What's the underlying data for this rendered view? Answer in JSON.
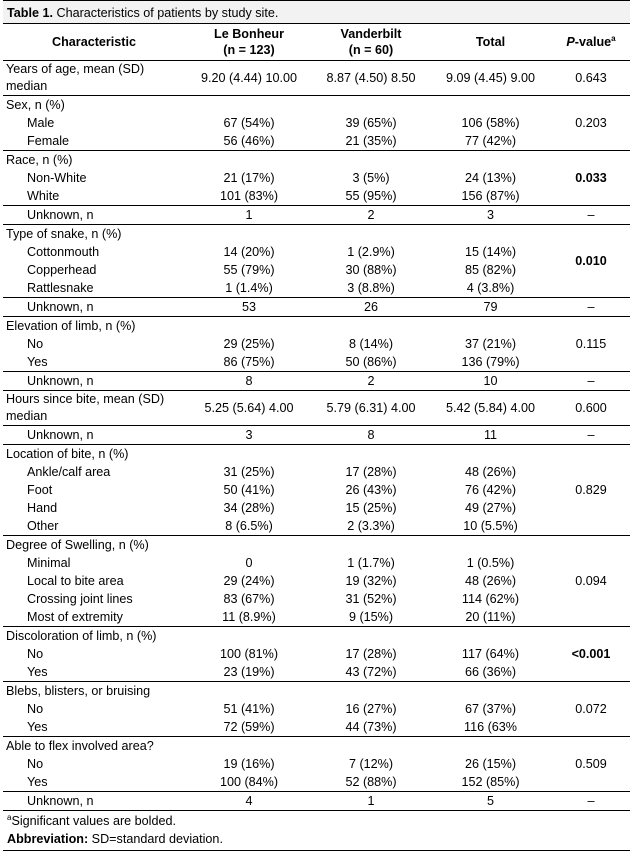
{
  "caption": {
    "label": "Table 1.",
    "text": "Characteristics of patients by study site."
  },
  "header": {
    "characteristic": "Characteristic",
    "site1_name": "Le Bonheur",
    "site1_n": "(n = 123)",
    "site2_name": "Vanderbilt",
    "site2_n": "(n = 60)",
    "total": "Total",
    "pvalue_italic": "P",
    "pvalue_rest": "-value",
    "pvalue_sup": "a"
  },
  "groups": [
    {
      "title": "Years of age, mean (SD) median",
      "values": [
        "9.20 (4.44) 10.00",
        "8.87 (4.50) 8.50",
        "9.09 (4.45) 9.00"
      ],
      "p": "0.643",
      "p_bold": false,
      "rows": []
    },
    {
      "title": "Sex, n (%)",
      "p": "0.203",
      "p_bold": false,
      "rows": [
        {
          "label": "Male",
          "values": [
            "67 (54%)",
            "39 (65%)",
            "106 (58%)"
          ]
        },
        {
          "label": "Female",
          "values": [
            "56 (46%)",
            "21 (35%)",
            "77 (42%)"
          ]
        }
      ],
      "unknown": null
    },
    {
      "title": "Race, n (%)",
      "p": "0.033",
      "p_bold": true,
      "rows": [
        {
          "label": "Non-White",
          "values": [
            "21 (17%)",
            "3 (5%)",
            "24 (13%)"
          ]
        },
        {
          "label": "White",
          "values": [
            "101 (83%)",
            "55 (95%)",
            "156 (87%)"
          ]
        }
      ],
      "unknown": {
        "label": "Unknown, n",
        "values": [
          "1",
          "2",
          "3"
        ],
        "p": "–"
      }
    },
    {
      "title": "Type of snake, n (%)",
      "p": "0.010",
      "p_bold": true,
      "rows": [
        {
          "label": "Cottonmouth",
          "values": [
            "14 (20%)",
            "1 (2.9%)",
            "15 (14%)"
          ]
        },
        {
          "label": "Copperhead",
          "values": [
            "55 (79%)",
            "30 (88%)",
            "85 (82%)"
          ]
        },
        {
          "label": "Rattlesnake",
          "values": [
            "1 (1.4%)",
            "3 (8.8%)",
            "4 (3.8%)"
          ]
        }
      ],
      "unknown": {
        "label": "Unknown, n",
        "values": [
          "53",
          "26",
          "79"
        ],
        "p": "–"
      }
    },
    {
      "title": "Elevation of limb, n (%)",
      "p": "0.115",
      "p_bold": false,
      "rows": [
        {
          "label": "No",
          "values": [
            "29 (25%)",
            "8 (14%)",
            "37 (21%)"
          ]
        },
        {
          "label": "Yes",
          "values": [
            "86 (75%)",
            "50 (86%)",
            "136 (79%)"
          ]
        }
      ],
      "unknown": {
        "label": "Unknown, n",
        "values": [
          "8",
          "2",
          "10"
        ],
        "p": "–"
      }
    },
    {
      "title": "Hours since bite, mean (SD) median",
      "values": [
        "5.25 (5.64) 4.00",
        "5.79 (6.31) 4.00",
        "5.42 (5.84) 4.00"
      ],
      "p": "0.600",
      "p_bold": false,
      "rows": [],
      "unknown": {
        "label": "Unknown, n",
        "values": [
          "3",
          "8",
          "11"
        ],
        "p": "–"
      }
    },
    {
      "title": "Location of bite, n (%)",
      "p": "0.829",
      "p_bold": false,
      "rows": [
        {
          "label": "Ankle/calf area",
          "values": [
            "31 (25%)",
            "17 (28%)",
            "48 (26%)"
          ]
        },
        {
          "label": "Foot",
          "values": [
            "50 (41%)",
            "26 (43%)",
            "76 (42%)"
          ]
        },
        {
          "label": "Hand",
          "values": [
            "34 (28%)",
            "15 (25%)",
            "49 (27%)"
          ]
        },
        {
          "label": "Other",
          "values": [
            "8 (6.5%)",
            "2 (3.3%)",
            "10 (5.5%)"
          ]
        }
      ],
      "unknown": null
    },
    {
      "title": "Degree of Swelling, n (%)",
      "p": "0.094",
      "p_bold": false,
      "rows": [
        {
          "label": "Minimal",
          "values": [
            "0",
            "1 (1.7%)",
            "1 (0.5%)"
          ]
        },
        {
          "label": "Local to bite area",
          "values": [
            "29 (24%)",
            "19 (32%)",
            "48 (26%)"
          ]
        },
        {
          "label": "Crossing joint lines",
          "values": [
            "83 (67%)",
            "31 (52%)",
            "114 (62%)"
          ]
        },
        {
          "label": "Most of extremity",
          "values": [
            "11 (8.9%)",
            "9 (15%)",
            "20 (11%)"
          ]
        }
      ],
      "unknown": null
    },
    {
      "title": "Discoloration of limb, n (%)",
      "p": "<0.001",
      "p_bold": true,
      "rows": [
        {
          "label": "No",
          "values": [
            "100 (81%)",
            "17 (28%)",
            "117 (64%)"
          ]
        },
        {
          "label": "Yes",
          "values": [
            "23 (19%)",
            "43 (72%)",
            "66 (36%)"
          ]
        }
      ],
      "unknown": null
    },
    {
      "title": "Blebs, blisters, or bruising",
      "p": "0.072",
      "p_bold": false,
      "rows": [
        {
          "label": "No",
          "values": [
            "51 (41%)",
            "16 (27%)",
            "67 (37%)"
          ]
        },
        {
          "label": "Yes",
          "values": [
            "72 (59%)",
            "44 (73%)",
            "116 (63%"
          ]
        }
      ],
      "unknown": null
    },
    {
      "title": "Able to flex involved area?",
      "p": "0.509",
      "p_bold": false,
      "rows": [
        {
          "label": "No",
          "values": [
            "19 (16%)",
            "7 (12%)",
            "26 (15%)"
          ]
        },
        {
          "label": "Yes",
          "values": [
            "100 (84%)",
            "52 (88%)",
            "152 (85%)"
          ]
        }
      ],
      "unknown": {
        "label": "Unknown, n",
        "values": [
          "4",
          "1",
          "5"
        ],
        "p": "–"
      }
    }
  ],
  "footnotes": {
    "sig_sup": "a",
    "sig_text": "Significant values are bolded.",
    "abbr_label": "Abbreviation:",
    "abbr_text": " SD=standard deviation."
  }
}
